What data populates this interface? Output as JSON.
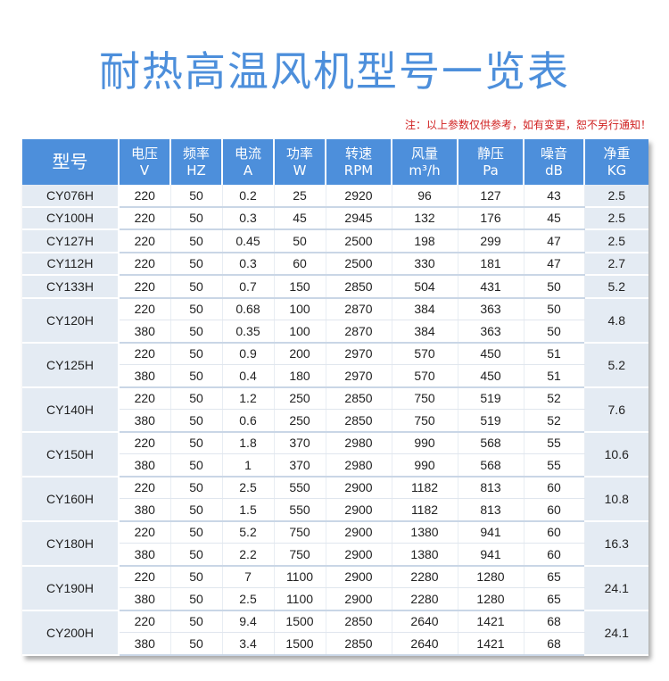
{
  "title": "耐热高温风机型号一览表",
  "note": "注：以上参数仅供参考，如有变更，恕不另行通知！",
  "headers": [
    {
      "key": "model",
      "line1": "型号",
      "line2": ""
    },
    {
      "key": "voltage",
      "line1": "电压",
      "line2": "V"
    },
    {
      "key": "freq",
      "line1": "频率",
      "line2": "HZ"
    },
    {
      "key": "current",
      "line1": "电流",
      "line2": "A"
    },
    {
      "key": "power",
      "line1": "功率",
      "line2": "W"
    },
    {
      "key": "rpm",
      "line1": "转速",
      "line2": "RPM"
    },
    {
      "key": "airflow",
      "line1": "风量",
      "line2": "m³/h"
    },
    {
      "key": "pressure",
      "line1": "静压",
      "line2": "Pa"
    },
    {
      "key": "noise",
      "line1": "噪音",
      "line2": "dB"
    },
    {
      "key": "weight",
      "line1": "净重",
      "line2": "KG"
    }
  ],
  "models": [
    {
      "model": "CY076H",
      "weight": "2.5",
      "rows": [
        [
          "220",
          "50",
          "0.2",
          "25",
          "2920",
          "96",
          "127",
          "43"
        ]
      ]
    },
    {
      "model": "CY100H",
      "weight": "2.5",
      "rows": [
        [
          "220",
          "50",
          "0.3",
          "45",
          "2945",
          "132",
          "176",
          "45"
        ]
      ]
    },
    {
      "model": "CY127H",
      "weight": "2.5",
      "rows": [
        [
          "220",
          "50",
          "0.45",
          "50",
          "2500",
          "198",
          "299",
          "47"
        ]
      ]
    },
    {
      "model": "CY112H",
      "weight": "2.7",
      "rows": [
        [
          "220",
          "50",
          "0.3",
          "60",
          "2500",
          "330",
          "181",
          "47"
        ]
      ]
    },
    {
      "model": "CY133H",
      "weight": "5.2",
      "rows": [
        [
          "220",
          "50",
          "0.7",
          "150",
          "2850",
          "504",
          "431",
          "50"
        ]
      ]
    },
    {
      "model": "CY120H",
      "weight": "4.8",
      "rows": [
        [
          "220",
          "50",
          "0.68",
          "100",
          "2870",
          "384",
          "363",
          "50"
        ],
        [
          "380",
          "50",
          "0.35",
          "100",
          "2870",
          "384",
          "363",
          "50"
        ]
      ]
    },
    {
      "model": "CY125H",
      "weight": "5.2",
      "rows": [
        [
          "220",
          "50",
          "0.9",
          "200",
          "2970",
          "570",
          "450",
          "51"
        ],
        [
          "380",
          "50",
          "0.4",
          "180",
          "2970",
          "570",
          "450",
          "51"
        ]
      ]
    },
    {
      "model": "CY140H",
      "weight": "7.6",
      "rows": [
        [
          "220",
          "50",
          "1.2",
          "250",
          "2850",
          "750",
          "519",
          "52"
        ],
        [
          "380",
          "50",
          "0.6",
          "250",
          "2850",
          "750",
          "519",
          "52"
        ]
      ]
    },
    {
      "model": "CY150H",
      "weight": "10.6",
      "rows": [
        [
          "220",
          "50",
          "1.8",
          "370",
          "2980",
          "990",
          "568",
          "55"
        ],
        [
          "380",
          "50",
          "1",
          "370",
          "2980",
          "990",
          "568",
          "55"
        ]
      ]
    },
    {
      "model": "CY160H",
      "weight": "10.8",
      "rows": [
        [
          "220",
          "50",
          "2.5",
          "550",
          "2900",
          "1182",
          "813",
          "60"
        ],
        [
          "380",
          "50",
          "1.5",
          "550",
          "2900",
          "1182",
          "813",
          "60"
        ]
      ]
    },
    {
      "model": "CY180H",
      "weight": "16.3",
      "rows": [
        [
          "220",
          "50",
          "5.2",
          "750",
          "2900",
          "1380",
          "941",
          "60"
        ],
        [
          "380",
          "50",
          "2.2",
          "750",
          "2900",
          "1380",
          "941",
          "60"
        ]
      ]
    },
    {
      "model": "CY190H",
      "weight": "24.1",
      "rows": [
        [
          "220",
          "50",
          "7",
          "1100",
          "2900",
          "2280",
          "1280",
          "65"
        ],
        [
          "380",
          "50",
          "2.5",
          "1100",
          "2900",
          "2280",
          "1280",
          "65"
        ]
      ]
    },
    {
      "model": "CY200H",
      "weight": "24.1",
      "rows": [
        [
          "220",
          "50",
          "9.4",
          "1500",
          "2850",
          "2640",
          "1421",
          "68"
        ],
        [
          "380",
          "50",
          "3.4",
          "1500",
          "2850",
          "2640",
          "1421",
          "68"
        ]
      ]
    }
  ],
  "colors": {
    "header_bg": "#4d8fdb",
    "title": "#4d8fdb",
    "note": "#d02020",
    "model_bg": "#e4ebf3"
  }
}
